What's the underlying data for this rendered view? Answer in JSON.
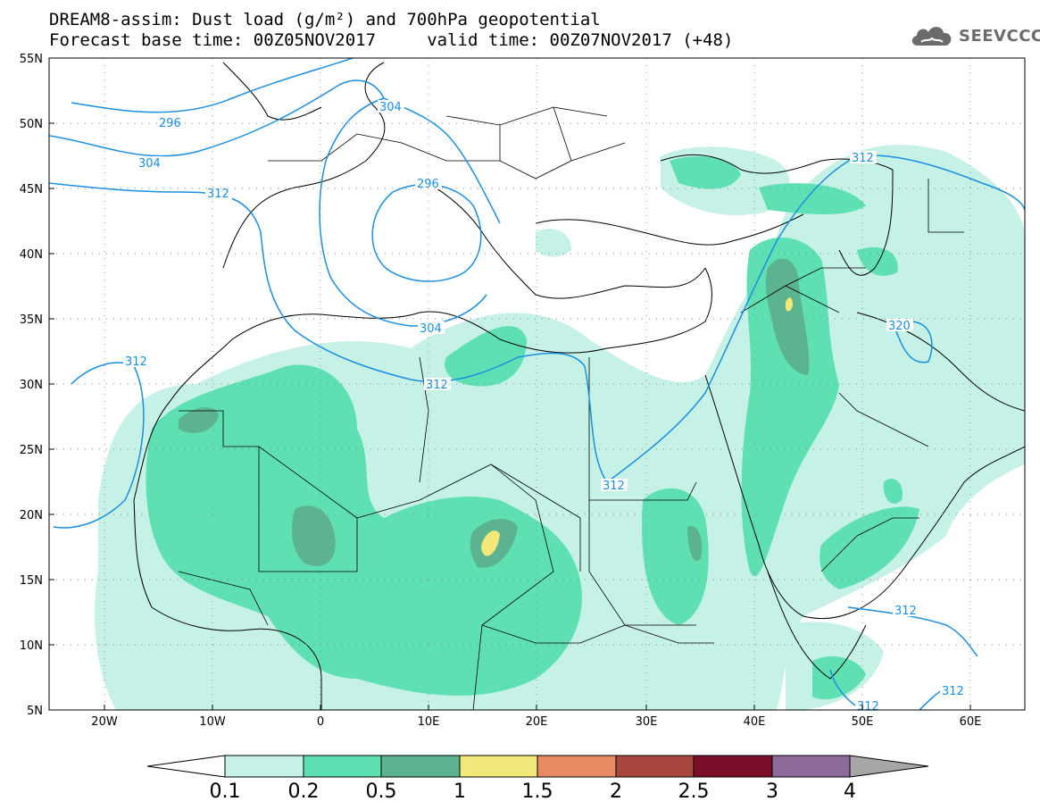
{
  "title": {
    "line1": "DREAM8-assim: Dust load (g/m²) and 700hPa geopotential",
    "line2": "Forecast base time: 00Z05NOV2017     valid time: 00Z07NOV2017 (+48)"
  },
  "logo": {
    "text": "SEEVCCC",
    "icon": "cloud-icon"
  },
  "map": {
    "lon_range": [
      -25,
      65
    ],
    "lat_range": [
      5,
      55
    ],
    "lon_ticks": [
      "20W",
      "10W",
      "0",
      "10E",
      "20E",
      "30E",
      "40E",
      "50E",
      "60E"
    ],
    "lat_ticks": [
      "55N",
      "50N",
      "45N",
      "40N",
      "35N",
      "30N",
      "25N",
      "20N",
      "15N",
      "10N",
      "5N"
    ],
    "gridlines": "dotted",
    "contour_labels": [
      "296",
      "304",
      "304",
      "296",
      "312",
      "312",
      "304",
      "312",
      "312",
      "312",
      "320",
      "312",
      "312",
      "312"
    ]
  },
  "colorbar": {
    "ticks": [
      "0.1",
      "0.2",
      "0.5",
      "1",
      "1.5",
      "2",
      "2.5",
      "3",
      "4"
    ],
    "colors": [
      "#c5f1e6",
      "#5fe0b3",
      "#5cb38f",
      "#f2e87a",
      "#e88a63",
      "#a8473e",
      "#7a0f2a",
      "#8c6b9c"
    ],
    "lower_color": "#ffffff",
    "upper_color": "#a6a6a6"
  },
  "colors": {
    "contour": "#1a8fe0",
    "coastline": "#000000",
    "land": "#ffffff"
  }
}
